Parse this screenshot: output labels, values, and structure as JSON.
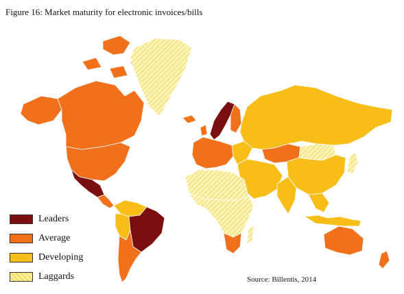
{
  "title": "Figure 16: Market maturity for electronic invoices/bills",
  "source": "Source: Billentis, 2014",
  "colors": {
    "leaders": "#7b0f0f",
    "average": "#f0701c",
    "developing": "#f7be1a",
    "laggards": "#fbf2a8",
    "laggards_hatch": "#f2d75a",
    "border": "#ffffff"
  },
  "legend": [
    {
      "key": "leaders",
      "label": "Leaders"
    },
    {
      "key": "average",
      "label": "Average"
    },
    {
      "key": "developing",
      "label": "Developing"
    },
    {
      "key": "laggards",
      "label": "Laggards"
    }
  ],
  "regions": [
    {
      "name": "canada",
      "category": "average"
    },
    {
      "name": "usa",
      "category": "average"
    },
    {
      "name": "alaska",
      "category": "average"
    },
    {
      "name": "mexico",
      "category": "leaders"
    },
    {
      "name": "central-america",
      "category": "average"
    },
    {
      "name": "greenland",
      "category": "laggards"
    },
    {
      "name": "brazil",
      "category": "leaders"
    },
    {
      "name": "northern-south-america",
      "category": "developing"
    },
    {
      "name": "peru",
      "category": "developing"
    },
    {
      "name": "chile-argentina",
      "category": "average"
    },
    {
      "name": "scandinavia",
      "category": "leaders"
    },
    {
      "name": "finland",
      "category": "average"
    },
    {
      "name": "iceland",
      "category": "average"
    },
    {
      "name": "western-europe",
      "category": "average"
    },
    {
      "name": "eastern-europe",
      "category": "developing"
    },
    {
      "name": "russia",
      "category": "developing"
    },
    {
      "name": "kazakhstan",
      "category": "average"
    },
    {
      "name": "mongolia",
      "category": "laggards"
    },
    {
      "name": "china",
      "category": "developing"
    },
    {
      "name": "middle-east",
      "category": "developing"
    },
    {
      "name": "india",
      "category": "developing"
    },
    {
      "name": "southeast-asia",
      "category": "developing"
    },
    {
      "name": "japan",
      "category": "laggards"
    },
    {
      "name": "north-africa",
      "category": "laggards"
    },
    {
      "name": "central-africa",
      "category": "laggards"
    },
    {
      "name": "south-africa",
      "category": "average"
    },
    {
      "name": "madagascar",
      "category": "laggards"
    },
    {
      "name": "australia",
      "category": "average"
    },
    {
      "name": "new-zealand",
      "category": "average"
    },
    {
      "name": "indonesia",
      "category": "developing"
    },
    {
      "name": "arctic-islands",
      "category": "average"
    }
  ]
}
